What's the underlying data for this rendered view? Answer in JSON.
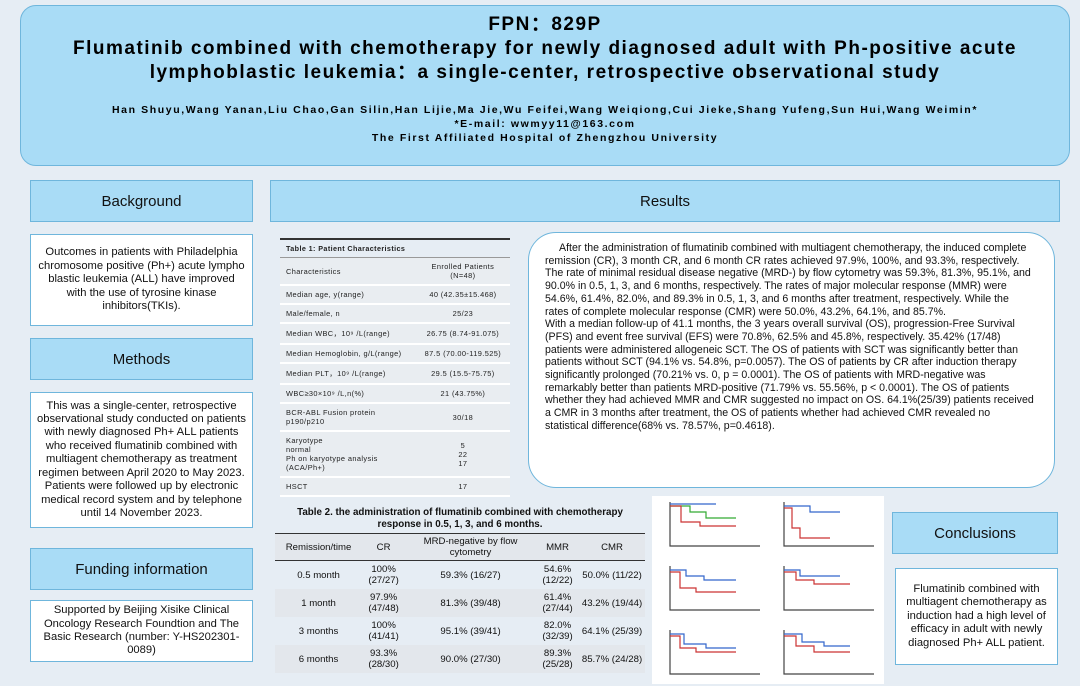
{
  "header": {
    "code": "FPN：829P",
    "title": "Flumatinib combined with chemotherapy for newly diagnosed adult with Ph-positive acute lymphoblastic leukemia：a single-center, retrospective observational study",
    "authors": "Han Shuyu,Wang Yanan,Liu Chao,Gan Silin,Han Lijie,Ma Jie,Wu Feifei,Wang Weiqiong,Cui Jieke,Shang Yufeng,Sun Hui,Wang Weimin*",
    "email": "*E-mail:  wwmyy11@163.com",
    "affiliation": "The First Affiliated Hospital of Zhengzhou University"
  },
  "background": {
    "heading": "Background",
    "text": "Outcomes in patients with Philadelphia chromosome positive (Ph+) acute lympho blastic leukemia (ALL) have improved with the use of tyrosine kinase inhibitors(TKIs)."
  },
  "methods": {
    "heading": "Methods",
    "text": "This was a single-center, retrospective observational study conducted on patients with newly diagnosed Ph+ ALL patients who received flumatinib combined with multiagent chemotherapy as treatment regimen between April 2020 to May 2023. Patients were followed up by electronic medical record system and by telephone until 14 November 2023."
  },
  "funding": {
    "heading": "Funding information",
    "text": "Supported by Beijing Xisike Clinical Oncology Research Foundtion and The Basic Research (number: Y-HS202301-0089)"
  },
  "results": {
    "heading": "Results",
    "paragraphs": [
      "After the administration of flumatinib combined with multiagent chemotherapy, the induced complete remission (CR), 3 month CR, and 6 month CR rates achieved 97.9%, 100%, and 93.3%, respectively. The rate of minimal residual disease negative (MRD-) by flow cytometry was 59.3%, 81.3%, 95.1%, and 90.0% in 0.5, 1, 3, and 6 months, respectively. The rates of major molecular response (MMR) were 54.6%, 61.4%, 82.0%, and 89.3% in 0.5, 1, 3, and 6 months after treatment, respectively. While the rates of complete molecular response (CMR) were 50.0%, 43.2%, 64.1%, and 85.7%.",
      "With a median follow-up of 41.1 months, the 3 years overall survival (OS), progression-Free Survival (PFS) and event free survival (EFS) were 70.8%, 62.5% and 45.8%, respectively. 35.42% (17/48) patients were administered allogeneic SCT. The OS of patients with SCT was significantly better than patients without SCT (94.1% vs. 54.8%, p=0.0057). The OS of patients by CR after induction therapy significantly prolonged (70.21% vs. 0, p = 0.0001). The OS of patients with MRD-negative was remarkably better than patients MRD-positive (71.79% vs. 55.56%, p < 0.0001). The OS of patients whether they had achieved MMR and CMR suggested no impact on OS. 64.1%(25/39) patients received a CMR in 3 months after treatment, the OS of patients whether had achieved CMR revealed no statistical difference(68% vs. 78.57%, p=0.4618)."
    ]
  },
  "table1": {
    "caption": "Table 1: Patient Characteristics",
    "rows": [
      [
        "Characteristics",
        "Enrolled Patients\n(N=48)"
      ],
      [
        "Median age, y(range)",
        "40 (42.35±15.468)"
      ],
      [
        "Male/female, n",
        "25/23"
      ],
      [
        "Median WBC，10⁹ /L(range)",
        "26.75 (8.74-91.075)"
      ],
      [
        "Median Hemoglobin, g/L(range)",
        "87.5 (70.00-119.525)"
      ],
      [
        "Median PLT，10⁹ /L(range)",
        "29.5 (15.5-75.75)"
      ],
      [
        "WBC≥30×10⁹ /L,n(%)",
        "21 (43.75%)"
      ],
      [
        "BCR-ABL Fusion protein\np190/p210",
        "30/18"
      ],
      [
        "Karyotype\nnormal\nPh on karyotype analysis\n(ACA/Ph+)",
        "5\n22\n17"
      ],
      [
        "HSCT",
        "17"
      ]
    ]
  },
  "table2": {
    "caption": "Table 2. the administration of flumatinib combined with chemotherapy response in 0.5, 1, 3, and 6 months.",
    "header": [
      "Remission/time",
      "CR",
      "MRD-negative by flow cytometry",
      "MMR",
      "CMR"
    ],
    "rows": [
      [
        "0.5 month",
        "100%\n(27/27)",
        "59.3% (16/27)",
        "54.6%\n(12/22)",
        "50.0% (11/22)"
      ],
      [
        "1 month",
        "97.9%\n(47/48)",
        "81.3% (39/48)",
        "61.4%\n(27/44)",
        "43.2% (19/44)"
      ],
      [
        "3 months",
        "100%\n(41/41)",
        "95.1% (39/41)",
        "82.0%\n(32/39)",
        "64.1% (25/39)"
      ],
      [
        "6 months",
        "93.3%\n(28/30)",
        "90.0% (27/30)",
        "89.3%\n(25/28)",
        "85.7% (24/28)"
      ]
    ]
  },
  "conclusions": {
    "heading": "Conclusions",
    "text": "Flumatinib combined with multiagent chemotherapy as induction had a high level of efficacy in adult with newly diagnosed Ph+ ALL patient."
  }
}
